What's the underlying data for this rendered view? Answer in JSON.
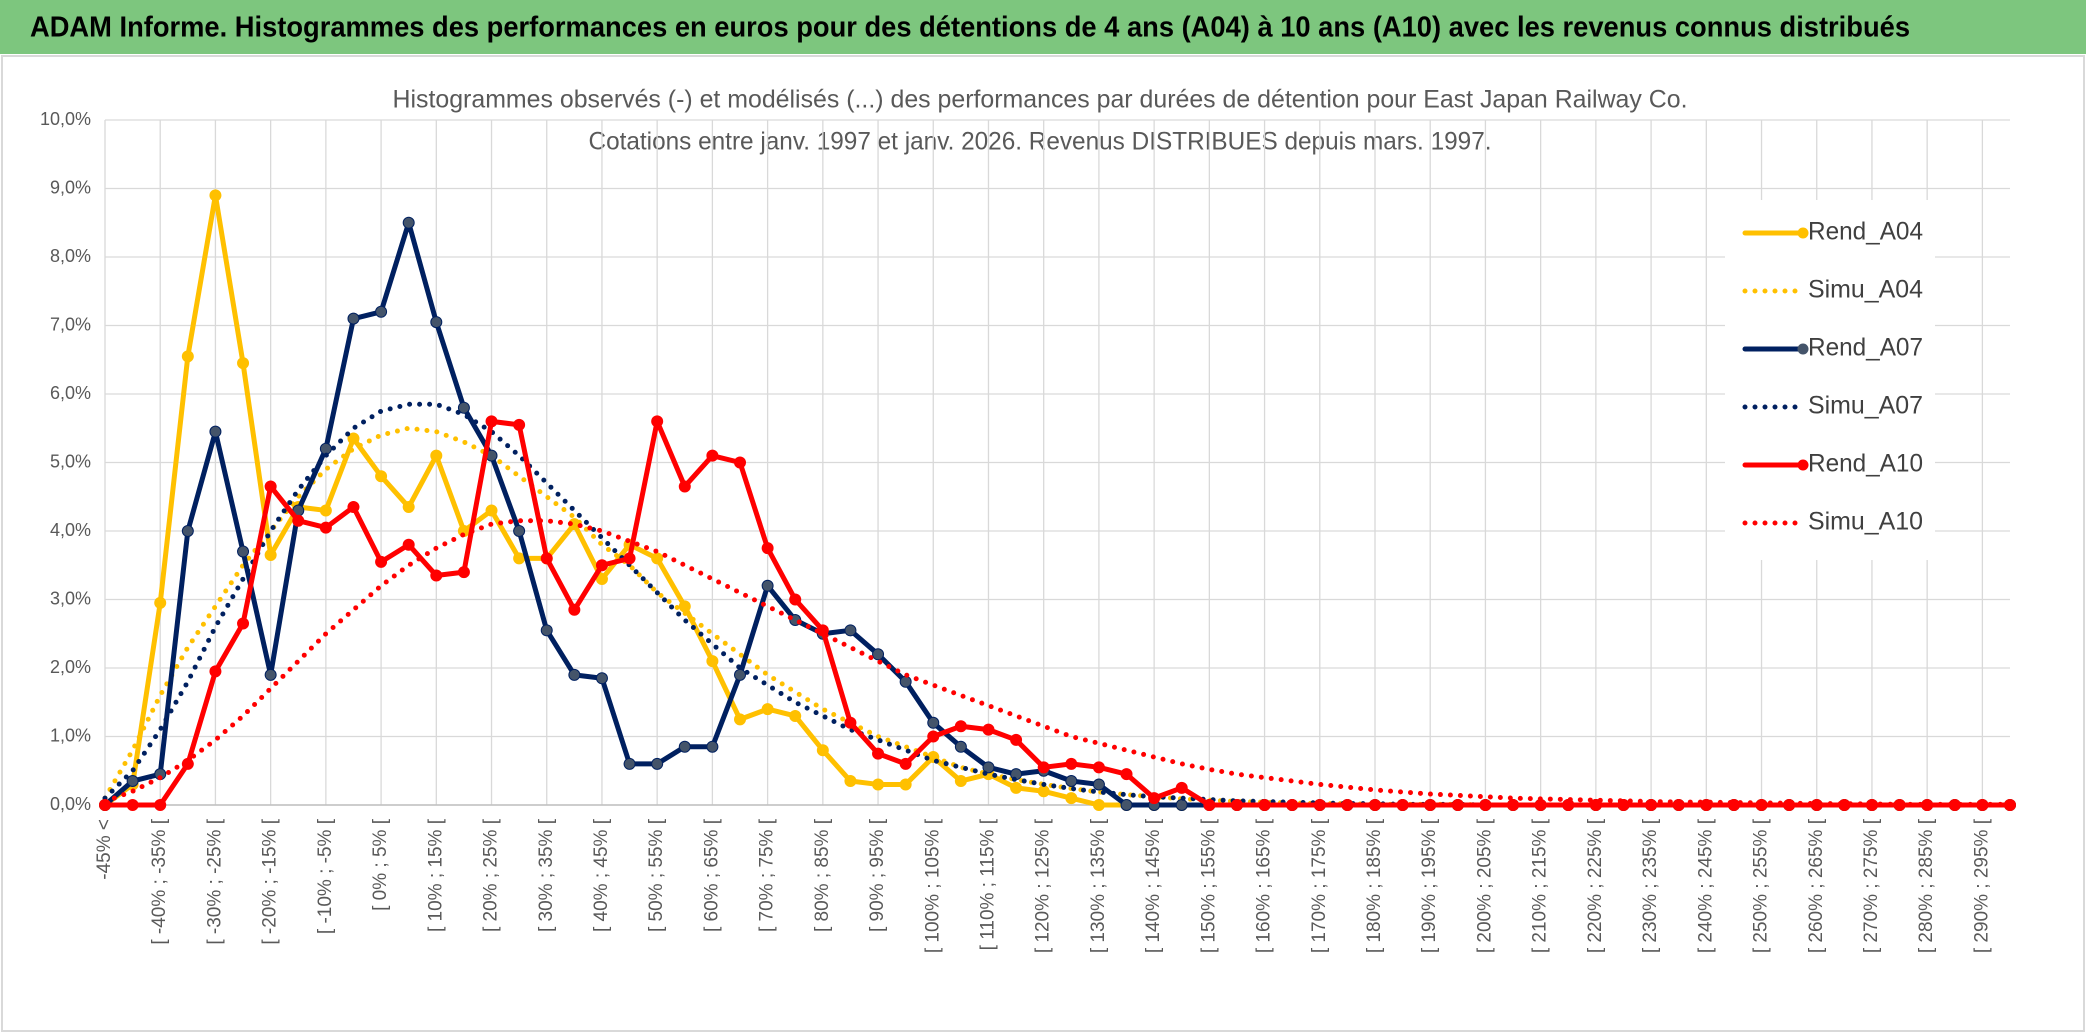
{
  "chart_data": {
    "type": "line",
    "header": "ADAM Informe. Histogrammes des performances en euros pour des détentions de 4 ans (A04) à 10 ans (A10) avec les revenus connus distribués",
    "title": "Histogrammes observés (-) et modélisés (...) des performances par durées de détention pour East Japan Railway Co.",
    "subtitle": "Cotations entre janv. 1997 et janv. 2026. Revenus DISTRIBUES depuis mars. 1997.",
    "categories": [
      "-45% <",
      null,
      "[ -40% ; -35% [",
      null,
      "[ -30% ; -25% [",
      null,
      "[ -20% ; -15% [",
      null,
      "[ -10% ; -5% [",
      null,
      "[ 0% ; 5% [",
      null,
      "[ 10% ; 15% [",
      null,
      "[ 20% ; 25% [",
      null,
      "[ 30% ; 35% [",
      null,
      "[ 40% ; 45% [",
      null,
      "[ 50% ; 55% [",
      null,
      "[ 60% ; 65% [",
      null,
      "[ 70% ; 75% [",
      null,
      "[ 80% ; 85% [",
      null,
      "[ 90% ; 95% [",
      null,
      "[ 100% ; 105% [",
      null,
      "[ 110% ; 115% [",
      null,
      "[ 120% ; 125% [",
      null,
      "[ 130% ; 135% [",
      null,
      "[ 140% ; 145% [",
      null,
      "[ 150% ; 155% [",
      null,
      "[ 160% ; 165% [",
      null,
      "[ 170% ; 175% [",
      null,
      "[ 180% ; 185% [",
      null,
      "[ 190% ; 195% [",
      null,
      "[ 200% ; 205% [",
      null,
      "[ 210% ; 215% [",
      null,
      "[ 220% ; 225% [",
      null,
      "[ 230% ; 235% [",
      null,
      "[ 240% ; 245% [",
      null,
      "[ 250% ; 255% [",
      null,
      "[ 260% ; 265% [",
      null,
      "[ 270% ; 275% [",
      null,
      "[ 280% ; 285% [",
      null,
      "[ 290% ; 295% [",
      null
    ],
    "series": [
      {
        "name": "Rend_A04",
        "color": "#FFC000",
        "style": "solid",
        "markers": true,
        "values": [
          0,
          0.3,
          2.95,
          6.55,
          8.9,
          6.45,
          3.65,
          4.35,
          4.3,
          5.35,
          4.8,
          4.35,
          5.1,
          4.0,
          4.3,
          3.6,
          3.6,
          4.1,
          3.3,
          3.8,
          3.6,
          2.9,
          2.1,
          1.25,
          1.4,
          1.3,
          0.8,
          0.35,
          0.3,
          0.3,
          0.7,
          0.35,
          0.45,
          0.25,
          0.2,
          0.1,
          0,
          0,
          0,
          0,
          0,
          0,
          0,
          0,
          0,
          0,
          0,
          0,
          0,
          0,
          0,
          0,
          0,
          0,
          0,
          0,
          0,
          0,
          0,
          0,
          0,
          0,
          0,
          0,
          0,
          0,
          0,
          0,
          0,
          0
        ]
      },
      {
        "name": "Simu_A04",
        "color": "#FFC000",
        "style": "dotted",
        "markers": false,
        "values": [
          0.1,
          0.8,
          1.6,
          2.3,
          2.9,
          3.5,
          4.0,
          4.5,
          4.9,
          5.2,
          5.4,
          5.5,
          5.45,
          5.3,
          5.1,
          4.8,
          4.5,
          4.2,
          3.8,
          3.5,
          3.1,
          2.8,
          2.5,
          2.2,
          1.9,
          1.65,
          1.4,
          1.2,
          1.0,
          0.85,
          0.7,
          0.55,
          0.45,
          0.37,
          0.3,
          0.24,
          0.19,
          0.15,
          0.12,
          0.09,
          0.07,
          0.05,
          0.04,
          0.03,
          0.02,
          0.02,
          0.01,
          0.01,
          0.01,
          0.01,
          0,
          0,
          0,
          0,
          0,
          0,
          0,
          0,
          0,
          0,
          0,
          0,
          0,
          0,
          0,
          0,
          0,
          0,
          0,
          0
        ]
      },
      {
        "name": "Rend_A07",
        "color": "#002060",
        "style": "solid",
        "markers": true,
        "values": [
          0,
          0.35,
          0.45,
          4.0,
          5.45,
          3.7,
          1.9,
          4.3,
          5.2,
          7.1,
          7.2,
          8.5,
          7.05,
          5.8,
          5.1,
          4.0,
          2.55,
          1.9,
          1.85,
          0.6,
          0.6,
          0.85,
          0.85,
          1.9,
          3.2,
          2.7,
          2.5,
          2.55,
          2.2,
          1.8,
          1.2,
          0.85,
          0.55,
          0.45,
          0.5,
          0.35,
          0.3,
          0,
          0,
          0,
          0,
          0,
          0,
          0,
          0,
          0,
          0,
          0,
          0,
          0,
          0,
          0,
          0,
          0,
          0,
          0,
          0,
          0,
          0,
          0,
          0,
          0,
          0,
          0,
          0,
          0,
          0,
          0,
          0,
          0
        ]
      },
      {
        "name": "Simu_A07",
        "color": "#002060",
        "style": "dotted",
        "markers": false,
        "values": [
          0.1,
          0.5,
          1.1,
          1.8,
          2.6,
          3.3,
          4.0,
          4.6,
          5.1,
          5.5,
          5.75,
          5.85,
          5.85,
          5.7,
          5.45,
          5.1,
          4.7,
          4.3,
          3.9,
          3.5,
          3.1,
          2.7,
          2.35,
          2.0,
          1.75,
          1.5,
          1.3,
          1.1,
          0.95,
          0.8,
          0.65,
          0.55,
          0.45,
          0.37,
          0.3,
          0.24,
          0.19,
          0.15,
          0.12,
          0.1,
          0.08,
          0.06,
          0.05,
          0.04,
          0.03,
          0.02,
          0.02,
          0.01,
          0.01,
          0.01,
          0,
          0,
          0,
          0,
          0,
          0,
          0,
          0,
          0,
          0,
          0,
          0,
          0,
          0,
          0,
          0,
          0,
          0,
          0,
          0
        ]
      },
      {
        "name": "Rend_A10",
        "color": "#FF0000",
        "style": "solid",
        "markers": true,
        "values": [
          0,
          0,
          0,
          0.6,
          1.95,
          2.65,
          4.65,
          4.15,
          4.05,
          4.35,
          3.55,
          3.8,
          3.35,
          3.4,
          5.6,
          5.55,
          3.6,
          2.85,
          3.5,
          3.6,
          5.6,
          4.65,
          5.1,
          5.0,
          3.75,
          3.0,
          2.55,
          1.2,
          0.75,
          0.6,
          1.0,
          1.15,
          1.1,
          0.95,
          0.55,
          0.6,
          0.55,
          0.45,
          0.1,
          0.25,
          0,
          0,
          0,
          0,
          0,
          0,
          0,
          0,
          0,
          0,
          0,
          0,
          0,
          0,
          0,
          0,
          0,
          0,
          0,
          0,
          0,
          0,
          0,
          0,
          0,
          0,
          0,
          0,
          0,
          0
        ]
      },
      {
        "name": "Simu_A10",
        "color": "#FF0000",
        "style": "dotted",
        "markers": false,
        "values": [
          0.05,
          0.2,
          0.4,
          0.65,
          0.95,
          1.3,
          1.7,
          2.1,
          2.5,
          2.85,
          3.2,
          3.5,
          3.75,
          3.95,
          4.1,
          4.15,
          4.15,
          4.1,
          4.0,
          3.85,
          3.7,
          3.5,
          3.3,
          3.1,
          2.9,
          2.7,
          2.5,
          2.3,
          2.1,
          1.9,
          1.75,
          1.6,
          1.45,
          1.3,
          1.15,
          1.0,
          0.9,
          0.8,
          0.7,
          0.6,
          0.52,
          0.45,
          0.4,
          0.35,
          0.3,
          0.26,
          0.22,
          0.19,
          0.16,
          0.14,
          0.12,
          0.1,
          0.09,
          0.08,
          0.07,
          0.06,
          0.05,
          0.045,
          0.04,
          0.035,
          0.03,
          0.025,
          0.02,
          0.02,
          0.015,
          0.01,
          0.01,
          0.01,
          0.01,
          0.01
        ]
      }
    ],
    "ylim": [
      0,
      10
    ],
    "yticks": [
      {
        "value": 0,
        "label": "0,0%"
      },
      {
        "value": 1,
        "label": "1,0%"
      },
      {
        "value": 2,
        "label": "2,0%"
      },
      {
        "value": 3,
        "label": "3,0%"
      },
      {
        "value": 4,
        "label": "4,0%"
      },
      {
        "value": 5,
        "label": "5,0%"
      },
      {
        "value": 6,
        "label": "6,0%"
      },
      {
        "value": 7,
        "label": "7,0%"
      },
      {
        "value": 8,
        "label": "8,0%"
      },
      {
        "value": 9,
        "label": "9,0%"
      },
      {
        "value": 10,
        "label": "10,0%"
      }
    ],
    "grid": true,
    "legend": "right"
  }
}
